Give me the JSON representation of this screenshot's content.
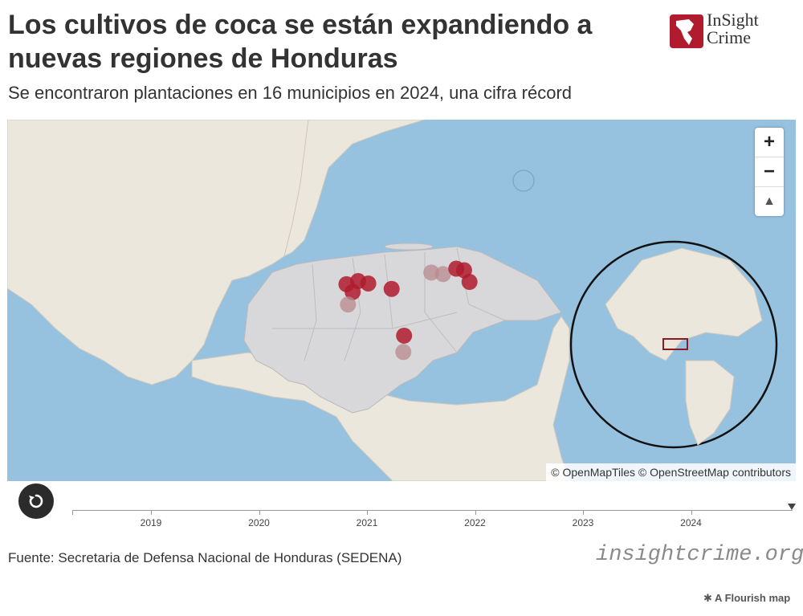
{
  "header": {
    "title": "Los cultivos de coca se están expandiendo a nuevas regiones de Honduras",
    "subtitle": "Se encontraron plantaciones en 16 municipios en 2024, una cifra récord"
  },
  "logo": {
    "line1": "InSight",
    "line2": "Crime"
  },
  "map": {
    "attribution": "© OpenMapTiles © OpenStreetMap contributors",
    "controls": {
      "zoom_in": "+",
      "zoom_out": "−",
      "compass": "▲"
    },
    "colors": {
      "sea": "#96c2e0",
      "land": "#ece7dc",
      "honduras": "#d8d8da",
      "marker": "#b01c2e",
      "marker_faded": "#b88a8e"
    },
    "markers": [
      {
        "lat": 15.72,
        "lon": -87.48,
        "faded": false
      },
      {
        "lat": 15.76,
        "lon": -87.33,
        "faded": false
      },
      {
        "lat": 15.73,
        "lon": -87.2,
        "faded": false
      },
      {
        "lat": 15.62,
        "lon": -87.4,
        "faded": false
      },
      {
        "lat": 15.46,
        "lon": -87.46,
        "faded": true
      },
      {
        "lat": 15.66,
        "lon": -86.9,
        "faded": false
      },
      {
        "lat": 15.87,
        "lon": -86.39,
        "faded": true
      },
      {
        "lat": 15.85,
        "lon": -86.24,
        "faded": true
      },
      {
        "lat": 15.92,
        "lon": -86.07,
        "faded": false
      },
      {
        "lat": 15.9,
        "lon": -85.97,
        "faded": false
      },
      {
        "lat": 15.75,
        "lon": -85.9,
        "faded": false
      },
      {
        "lat": 15.06,
        "lon": -86.74,
        "faded": false
      },
      {
        "lat": 14.85,
        "lon": -86.75,
        "faded": true
      }
    ],
    "inset": {
      "label": "globe-locator"
    }
  },
  "timeline": {
    "years": [
      "2019",
      "2020",
      "2021",
      "2022",
      "2023",
      "2024"
    ],
    "current": "2024"
  },
  "footer": {
    "source": "Fuente: Secretaria de Defensa Nacional de Honduras (SEDENA)",
    "watermark": "insightcrime.org",
    "flourish": "A Flourish map"
  }
}
